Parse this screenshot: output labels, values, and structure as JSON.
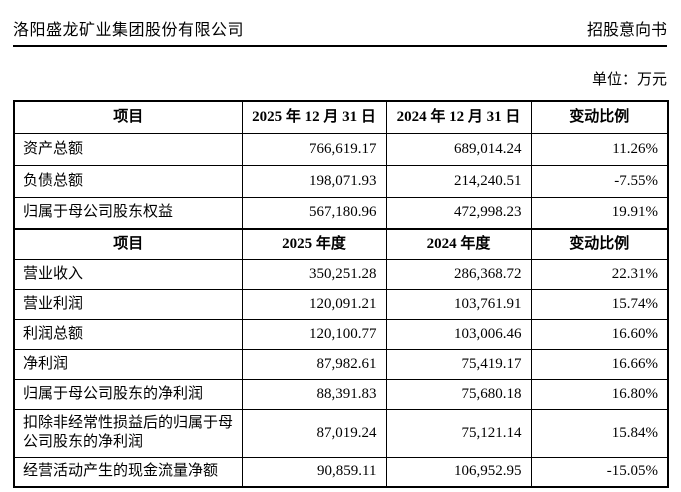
{
  "header": {
    "company": "洛阳盛龙矿业集团股份有限公司",
    "doc_type": "招股意向书",
    "unit_label": "单位：万元"
  },
  "balance_table": {
    "headers": [
      "项目",
      "2025 年 12 月 31 日",
      "2024 年 12 月 31 日",
      "变动比例"
    ],
    "rows": [
      {
        "item": "资产总额",
        "v2025": "766,619.17",
        "v2024": "689,014.24",
        "change": "11.26%"
      },
      {
        "item": "负债总额",
        "v2025": "198,071.93",
        "v2024": "214,240.51",
        "change": "-7.55%"
      },
      {
        "item": "归属于母公司股东权益",
        "v2025": "567,180.96",
        "v2024": "472,998.23",
        "change": "19.91%"
      }
    ]
  },
  "income_table": {
    "headers": [
      "项目",
      "2025 年度",
      "2024 年度",
      "变动比例"
    ],
    "rows": [
      {
        "item": "营业收入",
        "v2025": "350,251.28",
        "v2024": "286,368.72",
        "change": "22.31%"
      },
      {
        "item": "营业利润",
        "v2025": "120,091.21",
        "v2024": "103,761.91",
        "change": "15.74%"
      },
      {
        "item": "利润总额",
        "v2025": "120,100.77",
        "v2024": "103,006.46",
        "change": "16.60%"
      },
      {
        "item": "净利润",
        "v2025": "87,982.61",
        "v2024": "75,419.17",
        "change": "16.66%"
      },
      {
        "item": "归属于母公司股东的净利润",
        "v2025": "88,391.83",
        "v2024": "75,680.18",
        "change": "16.80%"
      },
      {
        "item": "扣除非经常性损益后的归属于母公司股东的净利润",
        "v2025": "87,019.24",
        "v2024": "75,121.14",
        "change": "15.84%"
      },
      {
        "item": "经营活动产生的现金流量净额",
        "v2025": "90,859.11",
        "v2024": "106,952.95",
        "change": "-15.05%"
      }
    ]
  }
}
